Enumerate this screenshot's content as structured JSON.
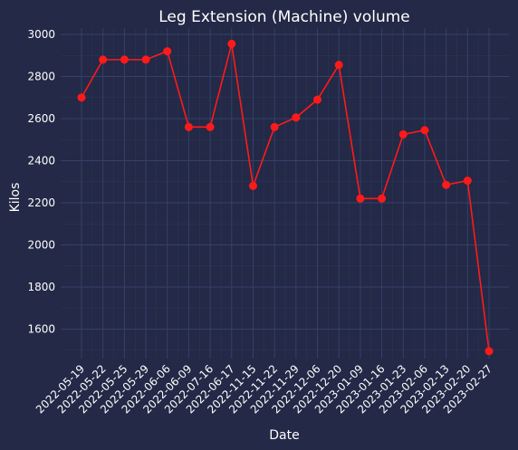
{
  "chart_data": {
    "type": "line",
    "title": "Leg Extension (Machine) volume",
    "xlabel": "Date",
    "ylabel": "Kilos",
    "ylim": [
      1460,
      3030
    ],
    "yticks": [
      1600,
      1800,
      2000,
      2200,
      2400,
      2600,
      2800,
      3000
    ],
    "grid": true,
    "categories": [
      "2022-05-19",
      "2022-05-22",
      "2022-05-25",
      "2022-05-29",
      "2022-06-06",
      "2022-06-09",
      "2022-07-16",
      "2022-06-17",
      "2022-11-15",
      "2022-11-22",
      "2022-11-29",
      "2022-12-06",
      "2022-12-20",
      "2023-01-09",
      "2023-01-16",
      "2023-01-23",
      "2023-02-06",
      "2023-02-13",
      "2023-02-20",
      "2023-02-27"
    ],
    "series": [
      {
        "name": "volume",
        "color": "#ff1a1a",
        "values": [
          2700,
          2880,
          2880,
          2880,
          2920,
          2560,
          2560,
          2955,
          2280,
          2560,
          2605,
          2690,
          2855,
          2220,
          2220,
          2525,
          2545,
          2285,
          2305,
          1495
        ],
        "x_index": [
          0,
          1,
          2,
          3,
          4,
          5,
          6,
          7,
          8,
          9,
          10,
          11,
          12,
          13,
          14,
          15,
          16,
          17,
          18,
          19
        ]
      }
    ]
  },
  "colors": {
    "background": "#232946",
    "grid": "#34416a",
    "text": "#ffffff"
  }
}
